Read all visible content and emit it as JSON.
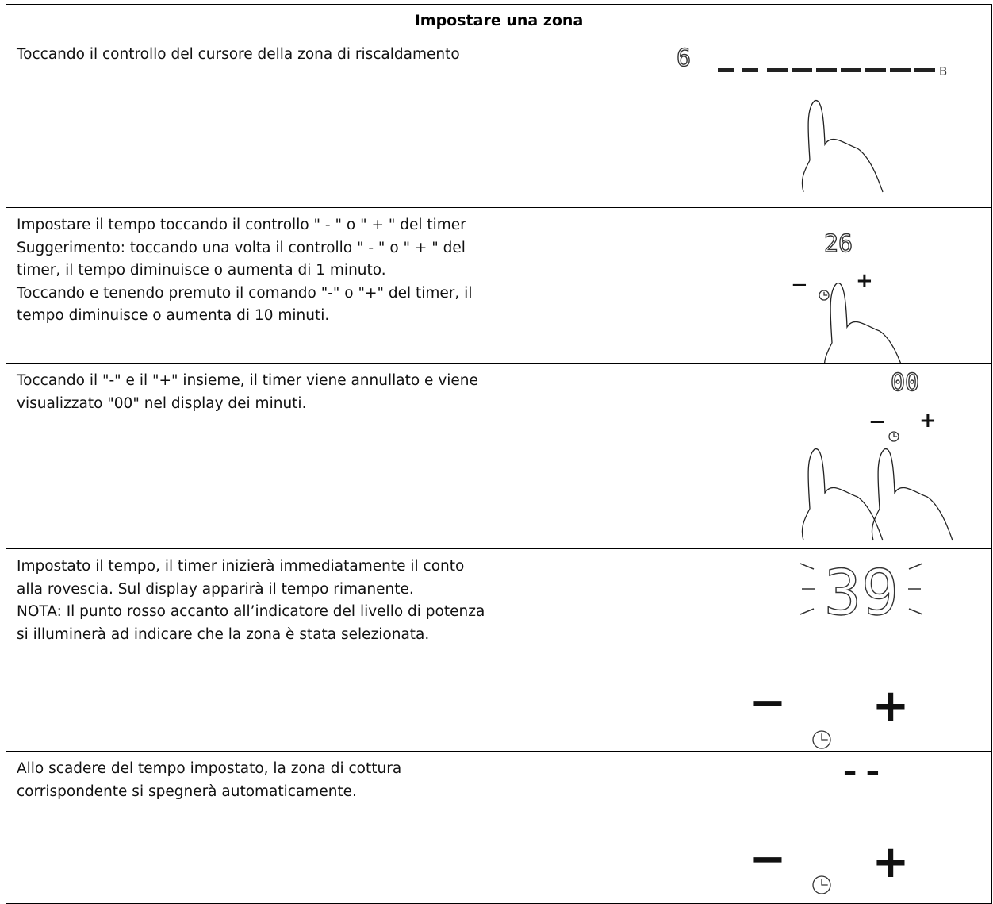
{
  "table": {
    "title": "Impostare una zona",
    "rows": [
      {
        "text": [
          "Toccando il controllo del cursore della zona di riscaldamento"
        ],
        "display": {
          "value": "6",
          "end": "B"
        }
      },
      {
        "text": [
          "Impostare il tempo toccando il controllo \" - \" o \" + \" del timer",
          "Suggerimento: toccando una volta il controllo \" - \" o \" + \" del",
          "timer, il tempo diminuisce o aumenta di 1 minuto.",
          "Toccando e tenendo premuto il comando \"-\" o \"+\" del timer, il",
          "tempo diminuisce o aumenta di 10 minuti."
        ],
        "display": {
          "value": "26",
          "minus": "−",
          "plus": "+"
        }
      },
      {
        "text": [
          "Toccando il \"-\" e il \"+\" insieme, il timer viene annullato e viene",
          "visualizzato \"00\" nel display dei minuti."
        ],
        "display": {
          "value": "00",
          "minus": "−",
          "plus": "+"
        }
      },
      {
        "text": [
          "Impostato il tempo, il timer inizierà immediatamente il conto",
          "alla rovescia. Sul display apparirà il tempo rimanente.",
          "NOTA: Il punto rosso accanto all’indicatore del livello di potenza",
          "si illuminerà ad indicare che la zona è stata selezionata."
        ],
        "display": {
          "value": "39",
          "minus": "−",
          "plus": "+"
        }
      },
      {
        "text": [
          "Allo scadere del tempo impostato, la zona di cottura",
          "corrispondente si spegnerà automaticamente."
        ],
        "display": {
          "value": "– –",
          "minus": "−",
          "plus": "+"
        }
      }
    ]
  }
}
